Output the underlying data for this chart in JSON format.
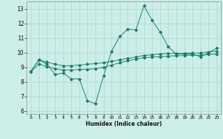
{
  "xlabel": "Humidex (Indice chaleur)",
  "background_color": "#cceee8",
  "grid_color": "#b0d8d0",
  "line_color": "#1a7a6e",
  "xlim": [
    -0.5,
    23.5
  ],
  "ylim": [
    5.8,
    13.5
  ],
  "yticks": [
    6,
    7,
    8,
    9,
    10,
    11,
    12,
    13
  ],
  "xticks": [
    0,
    1,
    2,
    3,
    4,
    5,
    6,
    7,
    8,
    9,
    10,
    11,
    12,
    13,
    14,
    15,
    16,
    17,
    18,
    19,
    20,
    21,
    22,
    23
  ],
  "line1_x": [
    0,
    1,
    2,
    3,
    4,
    5,
    6,
    7,
    8,
    9,
    10,
    11,
    12,
    13,
    14,
    15,
    16,
    17,
    18,
    19,
    20,
    21,
    22,
    23
  ],
  "line1_y": [
    8.7,
    9.5,
    9.2,
    8.5,
    8.6,
    8.2,
    8.2,
    6.7,
    6.5,
    8.4,
    10.1,
    11.1,
    11.6,
    11.55,
    13.2,
    12.2,
    11.4,
    10.4,
    9.9,
    9.9,
    9.9,
    9.7,
    10.0,
    10.3
  ],
  "line2_x": [
    0,
    1,
    2,
    3,
    4,
    5,
    6,
    7,
    8,
    9,
    10,
    11,
    12,
    13,
    14,
    15,
    16,
    17,
    18,
    19,
    20,
    21,
    22,
    23
  ],
  "line2_y": [
    8.7,
    9.5,
    9.35,
    9.2,
    9.1,
    9.1,
    9.15,
    9.2,
    9.25,
    9.3,
    9.4,
    9.5,
    9.6,
    9.7,
    9.8,
    9.85,
    9.9,
    9.95,
    9.95,
    9.95,
    9.97,
    9.97,
    10.05,
    10.1
  ],
  "line3_x": [
    0,
    1,
    2,
    3,
    4,
    5,
    6,
    7,
    8,
    9,
    10,
    11,
    12,
    13,
    14,
    15,
    16,
    17,
    18,
    19,
    20,
    21,
    22,
    23
  ],
  "line3_y": [
    8.7,
    9.2,
    9.05,
    8.9,
    8.8,
    8.8,
    8.85,
    8.85,
    8.9,
    9.0,
    9.15,
    9.3,
    9.45,
    9.55,
    9.65,
    9.7,
    9.72,
    9.75,
    9.78,
    9.8,
    9.82,
    9.83,
    9.87,
    9.9
  ]
}
